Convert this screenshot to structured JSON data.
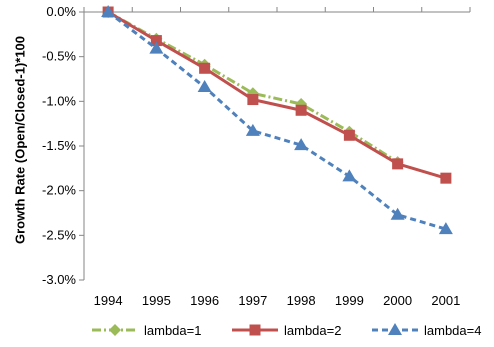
{
  "chart_data": {
    "type": "line",
    "x": [
      "1994",
      "1995",
      "1996",
      "1997",
      "1998",
      "1999",
      "2000",
      "2001"
    ],
    "ylabel": "Growth Rate (Open/Closed-1)*100",
    "xlabel": "",
    "ylim": [
      -3.0,
      0.0
    ],
    "yticks": [
      0.0,
      -0.5,
      -1.0,
      -1.5,
      -2.0,
      -2.5,
      -3.0
    ],
    "ytick_labels": [
      "0.0%",
      "-0.5%",
      "-1.0%",
      "-1.5%",
      "-2.0%",
      "-2.5%",
      "-3.0%"
    ],
    "grid": false,
    "legend_position": "bottom",
    "series": [
      {
        "name": "lambda=1",
        "color": "#9BBB59",
        "line_style": "dash-dot",
        "marker": "diamond",
        "values": [
          0.0,
          -0.3,
          -0.59,
          -0.91,
          -1.03,
          -1.34,
          -1.68,
          null
        ]
      },
      {
        "name": "lambda=2",
        "color": "#C0504D",
        "line_style": "solid",
        "marker": "square",
        "values": [
          0.0,
          -0.32,
          -0.63,
          -0.98,
          -1.1,
          -1.38,
          -1.7,
          -1.86
        ]
      },
      {
        "name": "lambda=4",
        "color": "#4F81BD",
        "line_style": "dashed",
        "marker": "triangle",
        "values": [
          0.0,
          -0.41,
          -0.84,
          -1.33,
          -1.49,
          -1.84,
          -2.27,
          -2.43
        ]
      }
    ]
  }
}
